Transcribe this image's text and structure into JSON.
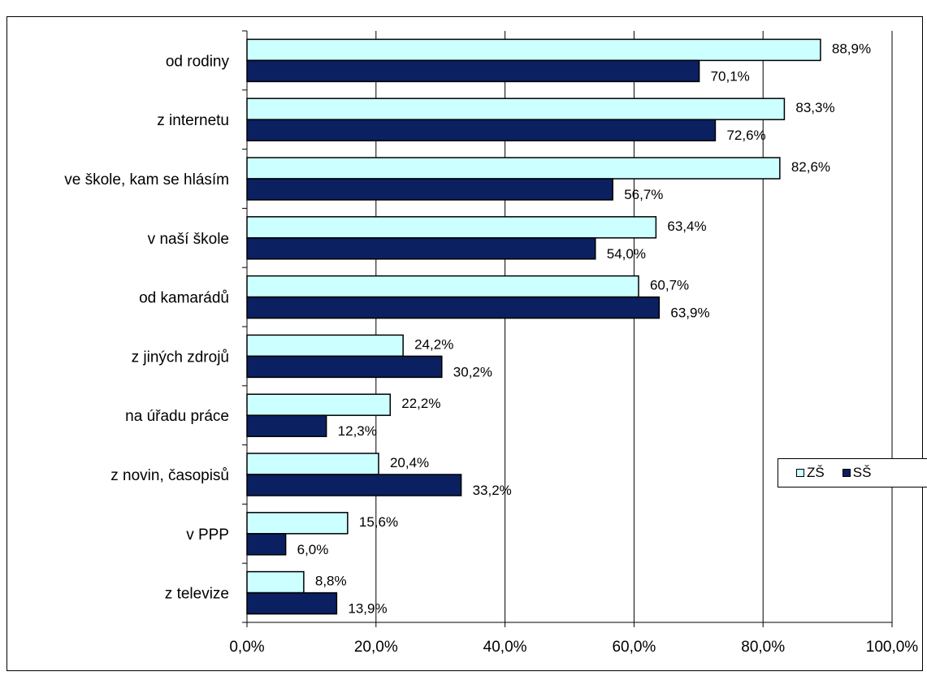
{
  "chart_data": {
    "type": "bar",
    "orientation": "horizontal",
    "categories": [
      "od rodiny",
      "z internetu",
      "ve škole, kam se hlásím",
      "v naší škole",
      "od kamarádů",
      "z jiných zdrojů",
      "na úřadu práce",
      "z novin, časopisů",
      "v PPP",
      "z televize"
    ],
    "series": [
      {
        "name": "ZŠ",
        "color": "#ccffff",
        "values": [
          88.9,
          83.3,
          82.6,
          63.4,
          60.7,
          24.2,
          22.2,
          20.4,
          15.6,
          8.8
        ],
        "labels": [
          "88,9%",
          "83,3%",
          "82,6%",
          "63,4%",
          "60,7%",
          "24,2%",
          "22,2%",
          "20,4%",
          "15,6%",
          "8,8%"
        ]
      },
      {
        "name": "SŠ",
        "color": "#0b2060",
        "values": [
          70.1,
          72.6,
          56.7,
          54.0,
          63.9,
          30.2,
          12.3,
          33.2,
          6.0,
          13.9
        ],
        "labels": [
          "70,1%",
          "72,6%",
          "56,7%",
          "54,0%",
          "63,9%",
          "30,2%",
          "12,3%",
          "33,2%",
          "6,0%",
          "13,9%"
        ]
      }
    ],
    "xlim": [
      0,
      100
    ],
    "xticks": [
      "0,0%",
      "20,0%",
      "40,0%",
      "60,0%",
      "80,0%",
      "100,0%"
    ],
    "grid": true,
    "legend_position": "right"
  }
}
